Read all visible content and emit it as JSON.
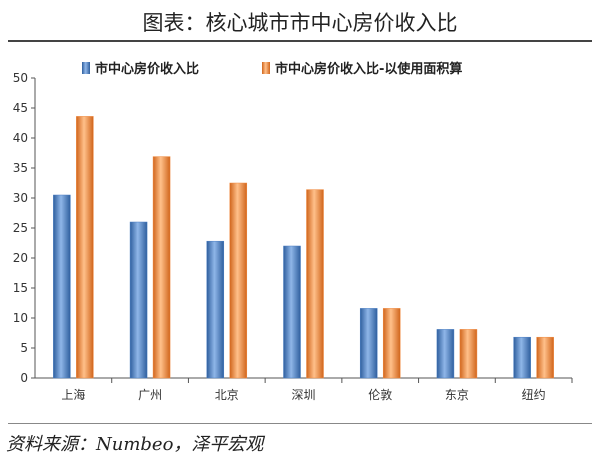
{
  "header": {
    "title": "图表：核心城市市中心房价收入比"
  },
  "footer": {
    "source": "资料来源：Numbeo，泽平宏观"
  },
  "chart_data": {
    "type": "bar",
    "categories": [
      "上海",
      "广州",
      "北京",
      "深圳",
      "伦敦",
      "东京",
      "纽约"
    ],
    "series": [
      {
        "name": "市中心房价收入比",
        "values": [
          30.5,
          26.0,
          22.8,
          22.0,
          11.6,
          8.1,
          6.8
        ],
        "color": "#4a7ec2"
      },
      {
        "name": "市中心房价收入比-以使用面积算",
        "values": [
          43.6,
          36.9,
          32.5,
          31.4,
          11.6,
          8.1,
          6.8
        ],
        "color": "#f08a40"
      }
    ],
    "ylim": [
      0,
      50
    ],
    "yticks": [
      0,
      5,
      10,
      15,
      20,
      25,
      30,
      35,
      40,
      45,
      50
    ],
    "legend_position": "top",
    "grid": false
  }
}
